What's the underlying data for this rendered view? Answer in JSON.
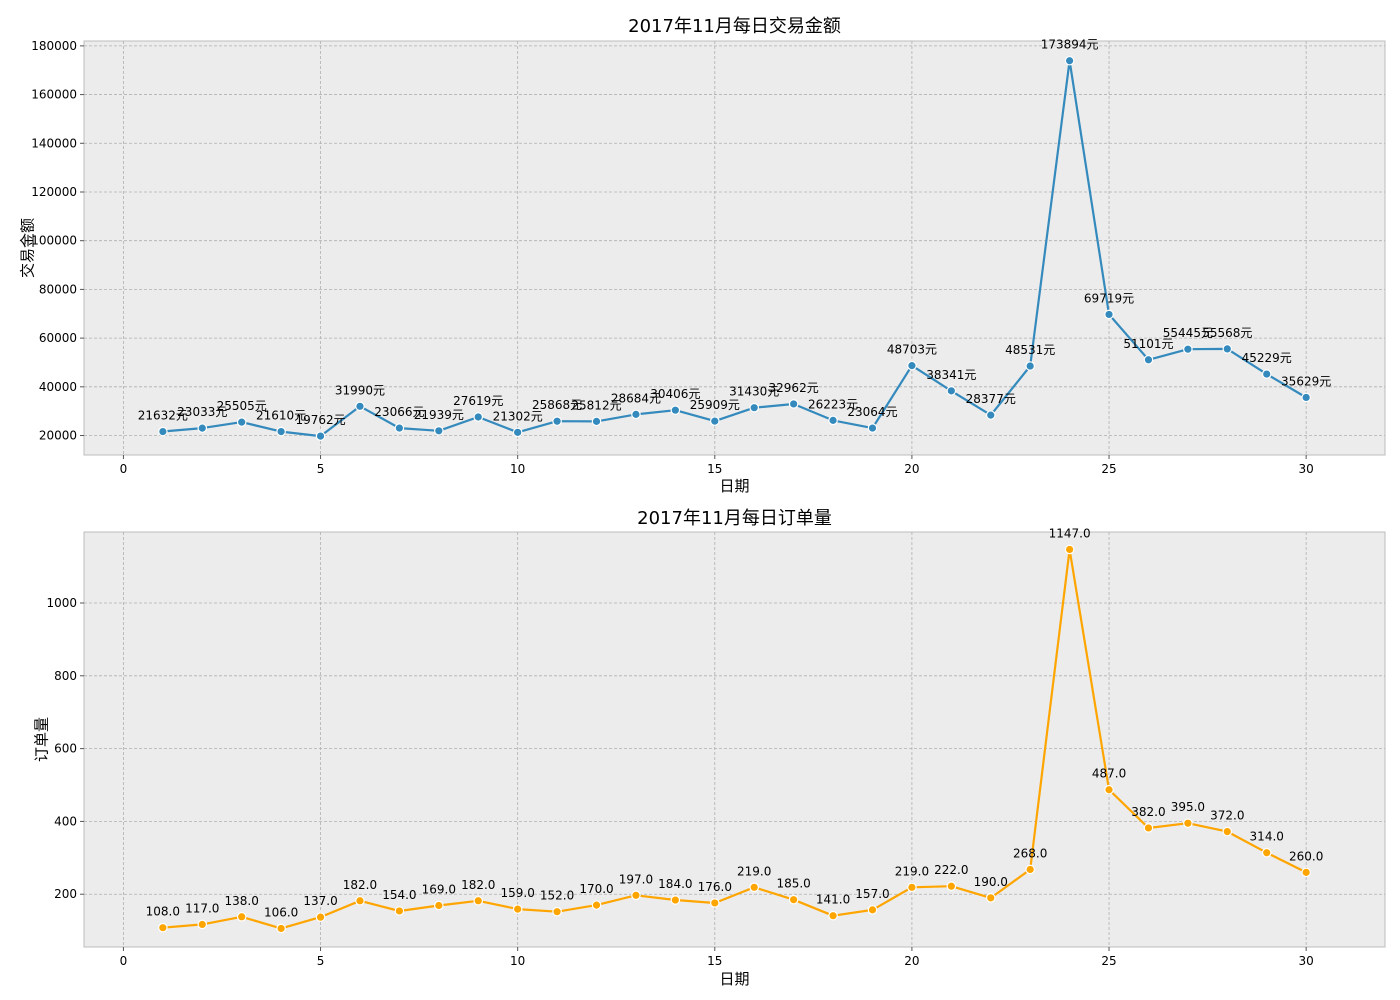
{
  "chart_data": [
    {
      "type": "line",
      "title": "2017年11月每日交易金额",
      "xlabel": "日期",
      "ylabel": "交易金额",
      "xlim": [
        -1,
        32
      ],
      "ylim": [
        12000,
        182000
      ],
      "xticks": [
        0,
        5,
        10,
        15,
        20,
        25,
        30
      ],
      "yticks": [
        20000,
        40000,
        60000,
        80000,
        100000,
        120000,
        140000,
        160000,
        180000
      ],
      "grid": true,
      "color": "#348abd",
      "series": [
        {
          "x": [
            1,
            2,
            3,
            4,
            5,
            6,
            7,
            8,
            9,
            10,
            11,
            12,
            13,
            14,
            15,
            16,
            17,
            18,
            19,
            20,
            21,
            22,
            23,
            24,
            25,
            26,
            27,
            28,
            29,
            30
          ],
          "values": [
            21632,
            23033,
            25505,
            21610,
            19762,
            31990,
            23066,
            21939,
            27619,
            21302,
            25868,
            25812,
            28684,
            30406,
            25909,
            31430,
            32962,
            26223,
            23064,
            48703,
            38341,
            28377,
            48531,
            173894,
            69719,
            51101,
            55445,
            55568,
            45229,
            35629
          ],
          "labels": [
            "21632元",
            "23033元",
            "25505元",
            "21610元",
            "19762元",
            "31990元",
            "23066元",
            "21939元",
            "27619元",
            "21302元",
            "25868元",
            "25812元",
            "28684元",
            "30406元",
            "25909元",
            "31430元",
            "32962元",
            "26223元",
            "23064元",
            "48703元",
            "38341元",
            "28377元",
            "48531元",
            "173894元",
            "69719元",
            "51101元",
            "55445元",
            "55568元",
            "45229元",
            "35629元"
          ]
        }
      ]
    },
    {
      "type": "line",
      "title": "2017年11月每日订单量",
      "xlabel": "日期",
      "ylabel": "订单量",
      "xlim": [
        -1,
        32
      ],
      "ylim": [
        55,
        1195
      ],
      "xticks": [
        0,
        5,
        10,
        15,
        20,
        25,
        30
      ],
      "yticks": [
        200,
        400,
        600,
        800,
        1000
      ],
      "grid": true,
      "color": "#ffa500",
      "series": [
        {
          "x": [
            1,
            2,
            3,
            4,
            5,
            6,
            7,
            8,
            9,
            10,
            11,
            12,
            13,
            14,
            15,
            16,
            17,
            18,
            19,
            20,
            21,
            22,
            23,
            24,
            25,
            26,
            27,
            28,
            29,
            30
          ],
          "values": [
            108,
            117,
            138,
            106,
            137,
            182,
            154,
            169,
            182,
            159,
            152,
            170,
            197,
            184,
            176,
            219,
            185,
            141,
            157,
            219,
            222,
            190,
            268,
            1147,
            487,
            382,
            395,
            372,
            314,
            260
          ],
          "labels": [
            "108.0",
            "117.0",
            "138.0",
            "106.0",
            "137.0",
            "182.0",
            "154.0",
            "169.0",
            "182.0",
            "159.0",
            "152.0",
            "170.0",
            "197.0",
            "184.0",
            "176.0",
            "219.0",
            "185.0",
            "141.0",
            "157.0",
            "219.0",
            "222.0",
            "190.0",
            "268.0",
            "1147.0",
            "487.0",
            "382.0",
            "395.0",
            "372.0",
            "314.0",
            "260.0"
          ]
        }
      ]
    }
  ]
}
